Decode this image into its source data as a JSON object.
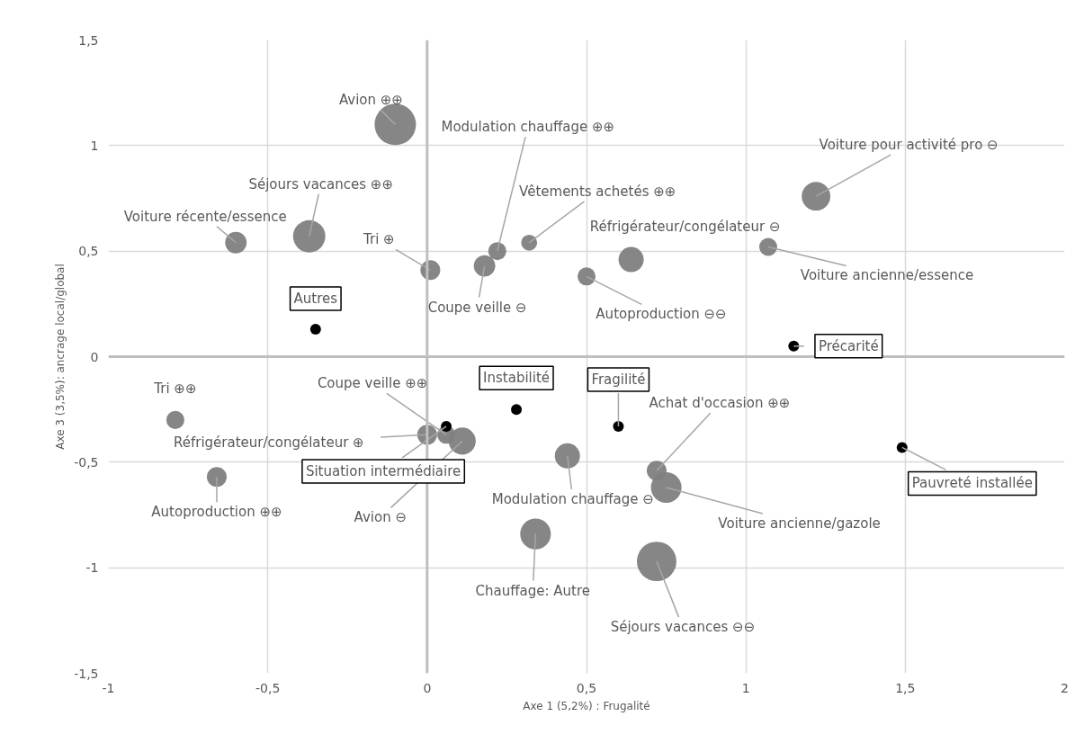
{
  "chart_data": {
    "type": "bubble",
    "xlabel": "Axe 1 (5,2%) : Frugalité",
    "ylabel": "Axe 3 (3,5%): ancrage local/global",
    "xlim": [
      -1,
      2
    ],
    "ylim": [
      -1.5,
      1.5
    ],
    "xticks": [
      -1,
      {
        "value": -0.5,
        "label": "-0,5"
      },
      0,
      {
        "value": 0.5,
        "label": "0,5"
      },
      1,
      {
        "value": 1.5,
        "label": "1,5"
      },
      2
    ],
    "yticks": [
      {
        "value": -1.5,
        "label": "-1,5"
      },
      -1,
      {
        "value": -0.5,
        "label": "-0,5"
      },
      0,
      {
        "value": 0.5,
        "label": "0,5"
      },
      1,
      {
        "value": 1.5,
        "label": "1,5"
      }
    ],
    "grid": true,
    "series": [
      {
        "color": "#808080",
        "x": [
          -0.1,
          -0.37,
          -0.6,
          0.01,
          0.22,
          0.18,
          0.32,
          0.5,
          0.64,
          1.22,
          1.07,
          -0.79,
          -0.66,
          0.0,
          0.06,
          0.11,
          0.44,
          0.72,
          0.75,
          0.34,
          0.72
        ],
        "values": [
          1.1,
          0.57,
          0.54,
          0.41,
          0.5,
          0.43,
          0.54,
          0.38,
          0.46,
          0.76,
          0.52,
          -0.3,
          -0.57,
          -0.37,
          -0.37,
          -0.4,
          -0.47,
          -0.54,
          -0.62,
          -0.84,
          -0.97
        ],
        "sizes": [
          1,
          0.61,
          0.27,
          0.23,
          0.19,
          0.27,
          0.15,
          0.19,
          0.37,
          0.48,
          0.19,
          0.19,
          0.23,
          0.23,
          0.19,
          0.43,
          0.37,
          0.23,
          0.55,
          0.55,
          0.91
        ]
      },
      {
        "type": "scatter",
        "color": "#000000",
        "x": [
          -0.35,
          1.15,
          0.28,
          0.6,
          0.06,
          1.49
        ],
        "values": [
          0.13,
          0.05,
          -0.25,
          -0.33,
          -0.33,
          -0.43
        ]
      }
    ],
    "annotations": [
      {
        "text": "Avion ⊕⊕",
        "x": -0.1,
        "y": 1.1
      },
      {
        "text": "Séjours vacances ⊕⊕",
        "x": -0.37,
        "y": 0.57
      },
      {
        "text": "Voiture récente/essence",
        "x": -0.6,
        "y": 0.54
      },
      {
        "text": "Tri ⊕",
        "x": 0.01,
        "y": 0.41
      },
      {
        "text": "Modulation chauffage ⊕⊕",
        "x": 0.22,
        "y": 0.5
      },
      {
        "text": "Coupe veille ⊖",
        "x": 0.18,
        "y": 0.43
      },
      {
        "text": "Vêtements achetés ⊕⊕",
        "x": 0.32,
        "y": 0.54
      },
      {
        "text": "Autoproduction ⊖⊖",
        "x": 0.5,
        "y": 0.38
      },
      {
        "text": "Réfrigérateur/congélateur ⊖",
        "x": 0.64,
        "y": 0.46
      },
      {
        "text": "Voiture pour activité pro ⊖",
        "x": 1.22,
        "y": 0.76
      },
      {
        "text": "Voiture ancienne/essence",
        "x": 1.07,
        "y": 0.52
      },
      {
        "text": "Tri ⊕⊕",
        "x": -0.79,
        "y": -0.3
      },
      {
        "text": "Autoproduction ⊕⊕",
        "x": -0.66,
        "y": -0.57
      },
      {
        "text": "Réfrigérateur/congélateur ⊕",
        "x": 0.0,
        "y": -0.37
      },
      {
        "text": "Coupe veille ⊕⊕",
        "x": 0.06,
        "y": -0.37
      },
      {
        "text": "Avion ⊖",
        "x": 0.11,
        "y": -0.4
      },
      {
        "text": "Modulation chauffage ⊖",
        "x": 0.44,
        "y": -0.47
      },
      {
        "text": "Achat d'occasion ⊕⊕",
        "x": 0.72,
        "y": -0.54
      },
      {
        "text": "Voiture ancienne/gazole",
        "x": 0.75,
        "y": -0.62
      },
      {
        "text": "Chauffage: Autre",
        "x": 0.34,
        "y": -0.84
      },
      {
        "text": "Séjours vacances ⊖⊖",
        "x": 0.72,
        "y": -0.97
      },
      {
        "text": "Autres",
        "x": -0.35,
        "y": 0.13
      },
      {
        "text": "Précarité",
        "x": 1.15,
        "y": 0.05
      },
      {
        "text": "Instabilité",
        "x": 0.28,
        "y": -0.25
      },
      {
        "text": "Fragilité",
        "x": 0.6,
        "y": -0.33
      },
      {
        "text": "Situation intermédiaire",
        "x": 0.06,
        "y": -0.33
      },
      {
        "text": "Pauvreté installée",
        "x": 1.49,
        "y": -0.43
      }
    ]
  }
}
